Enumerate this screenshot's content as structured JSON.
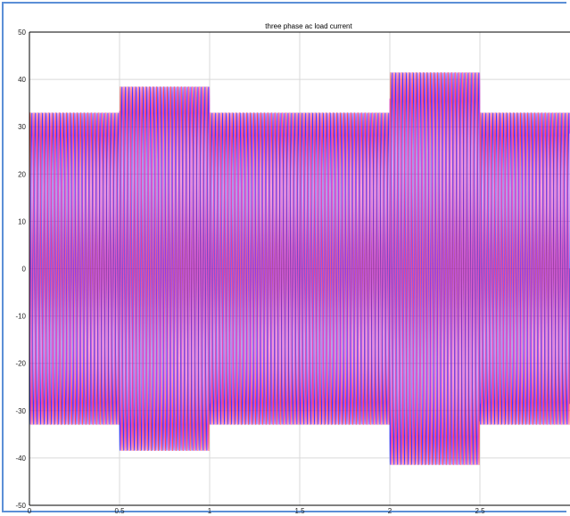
{
  "chart_data": {
    "type": "line",
    "title": "three phase ac load current",
    "xlabel": "",
    "ylabel": "",
    "xlim": [
      0,
      3
    ],
    "ylim": [
      -50,
      50
    ],
    "xticks": [
      0,
      0.5,
      1,
      1.5,
      2,
      2.5
    ],
    "xtick_labels": [
      "0",
      "0.5",
      "1",
      "1.5",
      "2",
      "2.5"
    ],
    "yticks": [
      -50,
      -40,
      -30,
      -20,
      -10,
      0,
      10,
      20,
      30,
      40,
      50
    ],
    "ytick_labels": [
      "-50",
      "-40",
      "-30",
      "-20",
      "-10",
      "0",
      "10",
      "20",
      "30",
      "40",
      "50"
    ],
    "grid": true,
    "frequency_hz": 50,
    "envelope": {
      "segments": [
        {
          "x_start": 0,
          "x_end": 0.5,
          "amplitude": 33
        },
        {
          "x_start": 0.5,
          "x_end": 1.0,
          "amplitude": 38.5
        },
        {
          "x_start": 1.0,
          "x_end": 2.0,
          "amplitude": 33
        },
        {
          "x_start": 2.0,
          "x_end": 2.5,
          "amplitude": 41.5
        },
        {
          "x_start": 2.5,
          "x_end": 3.0,
          "amplitude": 33
        }
      ]
    },
    "series": [
      {
        "color": "#ff2a2a",
        "phase_deg": 0
      },
      {
        "color": "#1a1aff",
        "phase_deg": 120
      },
      {
        "color": "#d41cd4",
        "phase_deg": 240
      }
    ],
    "colors": {
      "axis": "#000000",
      "grid": "#d9d9d9",
      "frame": "#5b8fd6"
    }
  }
}
